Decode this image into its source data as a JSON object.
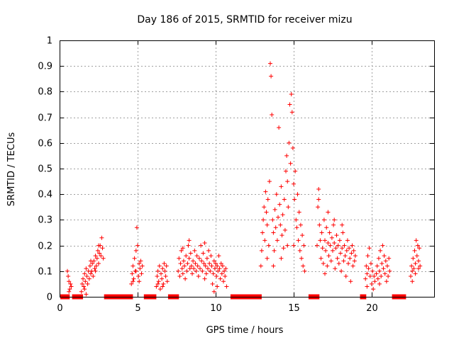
{
  "chart_data": {
    "type": "scatter",
    "title": "Day 186 of 2015, SRMTID for receiver mizu",
    "xlabel": "GPS time / hours",
    "ylabel": "SRMTID / TECUs",
    "xlim": [
      0,
      24
    ],
    "ylim": [
      0,
      1
    ],
    "x_ticks": [
      0,
      5,
      10,
      15,
      20
    ],
    "y_ticks": [
      0,
      0.1,
      0.2,
      0.3,
      0.4,
      0.5,
      0.6,
      0.7,
      0.8,
      0.9,
      1
    ],
    "x_tick_labels": [
      "0",
      "5",
      "10",
      "15",
      "20"
    ],
    "y_tick_labels": [
      "0",
      "0.1",
      "0.2",
      "0.3",
      "0.4",
      "0.5",
      "0.6",
      "0.7",
      "0.8",
      "0.9",
      "1"
    ],
    "grid": true,
    "marker": "+",
    "color": "#ff0000",
    "series": [
      {
        "name": "SRMTID",
        "points": [
          [
            0.5,
            0.1
          ],
          [
            0.55,
            0.08
          ],
          [
            0.6,
            0.06
          ],
          [
            0.65,
            0.03
          ],
          [
            0.7,
            0.05
          ],
          [
            0.75,
            0.04
          ],
          [
            0.6,
            0.02
          ],
          [
            1.4,
            0.02
          ],
          [
            1.45,
            0.05
          ],
          [
            1.5,
            0.07
          ],
          [
            1.55,
            0.04
          ],
          [
            1.6,
            0.09
          ],
          [
            1.65,
            0.06
          ],
          [
            1.7,
            0.01
          ],
          [
            1.75,
            0.08
          ],
          [
            1.8,
            0.05
          ],
          [
            1.85,
            0.1
          ],
          [
            1.9,
            0.07
          ],
          [
            1.95,
            0.12
          ],
          [
            2.0,
            0.09
          ],
          [
            2.05,
            0.1
          ],
          [
            2.1,
            0.13
          ],
          [
            2.15,
            0.08
          ],
          [
            2.2,
            0.14
          ],
          [
            2.25,
            0.11
          ],
          [
            2.3,
            0.16
          ],
          [
            2.35,
            0.12
          ],
          [
            2.4,
            0.15
          ],
          [
            2.45,
            0.18
          ],
          [
            2.5,
            0.13
          ],
          [
            2.55,
            0.17
          ],
          [
            2.6,
            0.2
          ],
          [
            2.65,
            0.16
          ],
          [
            2.7,
            0.23
          ],
          [
            2.75,
            0.19
          ],
          [
            2.8,
            0.15
          ],
          [
            1.6,
            0.03
          ],
          [
            1.7,
            0.11
          ],
          [
            2.0,
            0.14
          ],
          [
            2.3,
            0.1
          ],
          [
            2.5,
            0.2
          ],
          [
            4.6,
            0.05
          ],
          [
            4.65,
            0.09
          ],
          [
            4.7,
            0.12
          ],
          [
            4.75,
            0.07
          ],
          [
            4.8,
            0.15
          ],
          [
            4.85,
            0.1
          ],
          [
            4.9,
            0.18
          ],
          [
            4.95,
            0.27
          ],
          [
            5.0,
            0.2
          ],
          [
            5.05,
            0.08
          ],
          [
            5.1,
            0.13
          ],
          [
            5.15,
            0.11
          ],
          [
            5.2,
            0.14
          ],
          [
            5.25,
            0.09
          ],
          [
            5.3,
            0.12
          ],
          [
            4.7,
            0.06
          ],
          [
            4.9,
            0.1
          ],
          [
            5.1,
            0.06
          ],
          [
            6.2,
            0.04
          ],
          [
            6.25,
            0.08
          ],
          [
            6.3,
            0.1
          ],
          [
            6.35,
            0.06
          ],
          [
            6.4,
            0.12
          ],
          [
            6.45,
            0.03
          ],
          [
            6.5,
            0.09
          ],
          [
            6.55,
            0.07
          ],
          [
            6.6,
            0.11
          ],
          [
            6.65,
            0.05
          ],
          [
            6.7,
            0.13
          ],
          [
            6.75,
            0.1
          ],
          [
            6.8,
            0.08
          ],
          [
            6.85,
            0.12
          ],
          [
            6.9,
            0.06
          ],
          [
            6.3,
            0.05
          ],
          [
            6.6,
            0.04
          ],
          [
            7.6,
            0.1
          ],
          [
            7.65,
            0.15
          ],
          [
            7.7,
            0.08
          ],
          [
            7.75,
            0.13
          ],
          [
            7.8,
            0.18
          ],
          [
            7.85,
            0.11
          ],
          [
            7.9,
            0.09
          ],
          [
            7.95,
            0.14
          ],
          [
            8.0,
            0.12
          ],
          [
            8.05,
            0.07
          ],
          [
            8.1,
            0.16
          ],
          [
            8.15,
            0.1
          ],
          [
            8.2,
            0.13
          ],
          [
            8.25,
            0.2
          ],
          [
            8.3,
            0.15
          ],
          [
            8.35,
            0.11
          ],
          [
            8.4,
            0.17
          ],
          [
            8.45,
            0.12
          ],
          [
            8.5,
            0.09
          ],
          [
            8.55,
            0.14
          ],
          [
            8.6,
            0.11
          ],
          [
            8.65,
            0.18
          ],
          [
            8.7,
            0.13
          ],
          [
            8.75,
            0.1
          ],
          [
            8.8,
            0.16
          ],
          [
            8.85,
            0.12
          ],
          [
            8.9,
            0.08
          ],
          [
            8.95,
            0.15
          ],
          [
            9.0,
            0.11
          ],
          [
            9.05,
            0.2
          ],
          [
            9.1,
            0.14
          ],
          [
            9.15,
            0.1
          ],
          [
            9.2,
            0.17
          ],
          [
            9.25,
            0.13
          ],
          [
            9.3,
            0.07
          ],
          [
            9.35,
            0.12
          ],
          [
            9.4,
            0.09
          ],
          [
            9.45,
            0.15
          ],
          [
            9.5,
            0.11
          ],
          [
            9.55,
            0.18
          ],
          [
            9.6,
            0.13
          ],
          [
            9.65,
            0.1
          ],
          [
            9.7,
            0.16
          ],
          [
            9.75,
            0.12
          ],
          [
            9.8,
            0.05
          ],
          [
            9.85,
            0.09
          ],
          [
            9.9,
            0.14
          ],
          [
            9.95,
            0.11
          ],
          [
            10.0,
            0.13
          ],
          [
            10.05,
            0.08
          ],
          [
            10.1,
            0.12
          ],
          [
            10.15,
            0.1
          ],
          [
            10.2,
            0.16
          ],
          [
            10.25,
            0.11
          ],
          [
            10.3,
            0.07
          ],
          [
            10.35,
            0.13
          ],
          [
            10.4,
            0.09
          ],
          [
            10.45,
            0.12
          ],
          [
            10.5,
            0.06
          ],
          [
            10.55,
            0.1
          ],
          [
            10.6,
            0.08
          ],
          [
            10.65,
            0.11
          ],
          [
            10.7,
            0.04
          ],
          [
            9.9,
            0.02
          ],
          [
            10.1,
            0.04
          ],
          [
            8.3,
            0.22
          ],
          [
            9.3,
            0.21
          ],
          [
            7.9,
            0.19
          ],
          [
            12.9,
            0.12
          ],
          [
            12.95,
            0.18
          ],
          [
            13.0,
            0.25
          ],
          [
            13.05,
            0.3
          ],
          [
            13.1,
            0.35
          ],
          [
            13.15,
            0.22
          ],
          [
            13.2,
            0.41
          ],
          [
            13.25,
            0.33
          ],
          [
            13.3,
            0.28
          ],
          [
            13.35,
            0.38
          ],
          [
            13.4,
            0.2
          ],
          [
            13.45,
            0.45
          ],
          [
            13.5,
            0.91
          ],
          [
            13.55,
            0.86
          ],
          [
            13.6,
            0.71
          ],
          [
            13.65,
            0.3
          ],
          [
            13.7,
            0.25
          ],
          [
            13.75,
            0.18
          ],
          [
            13.8,
            0.34
          ],
          [
            13.85,
            0.27
          ],
          [
            13.9,
            0.4
          ],
          [
            13.95,
            0.22
          ],
          [
            14.0,
            0.31
          ],
          [
            14.05,
            0.66
          ],
          [
            14.1,
            0.36
          ],
          [
            14.15,
            0.28
          ],
          [
            14.2,
            0.43
          ],
          [
            14.25,
            0.24
          ],
          [
            14.3,
            0.32
          ],
          [
            14.35,
            0.19
          ],
          [
            14.4,
            0.38
          ],
          [
            14.45,
            0.26
          ],
          [
            14.5,
            0.49
          ],
          [
            14.55,
            0.55
          ],
          [
            14.6,
            0.45
          ],
          [
            14.65,
            0.35
          ],
          [
            14.7,
            0.6
          ],
          [
            14.75,
            0.75
          ],
          [
            14.8,
            0.52
          ],
          [
            14.85,
            0.79
          ],
          [
            14.9,
            0.72
          ],
          [
            14.95,
            0.58
          ],
          [
            15.0,
            0.44
          ],
          [
            15.05,
            0.38
          ],
          [
            15.1,
            0.49
          ],
          [
            15.15,
            0.3
          ],
          [
            15.2,
            0.27
          ],
          [
            15.25,
            0.4
          ],
          [
            15.3,
            0.22
          ],
          [
            15.35,
            0.33
          ],
          [
            15.4,
            0.18
          ],
          [
            15.45,
            0.28
          ],
          [
            15.5,
            0.15
          ],
          [
            15.55,
            0.24
          ],
          [
            15.6,
            0.12
          ],
          [
            15.65,
            0.2
          ],
          [
            15.7,
            0.1
          ],
          [
            14.2,
            0.15
          ],
          [
            14.6,
            0.2
          ],
          [
            13.3,
            0.15
          ],
          [
            13.7,
            0.12
          ],
          [
            15.0,
            0.2
          ],
          [
            16.5,
            0.2
          ],
          [
            16.55,
            0.35
          ],
          [
            16.6,
            0.42
          ],
          [
            16.65,
            0.28
          ],
          [
            16.7,
            0.22
          ],
          [
            16.75,
            0.15
          ],
          [
            16.8,
            0.25
          ],
          [
            16.85,
            0.19
          ],
          [
            16.9,
            0.13
          ],
          [
            16.95,
            0.3
          ],
          [
            17.0,
            0.22
          ],
          [
            17.05,
            0.18
          ],
          [
            17.1,
            0.27
          ],
          [
            17.15,
            0.12
          ],
          [
            17.2,
            0.21
          ],
          [
            17.25,
            0.16
          ],
          [
            17.3,
            0.25
          ],
          [
            17.35,
            0.2
          ],
          [
            17.4,
            0.14
          ],
          [
            17.45,
            0.23
          ],
          [
            17.5,
            0.18
          ],
          [
            17.55,
            0.28
          ],
          [
            17.6,
            0.21
          ],
          [
            17.65,
            0.11
          ],
          [
            17.7,
            0.19
          ],
          [
            17.75,
            0.24
          ],
          [
            17.8,
            0.15
          ],
          [
            17.85,
            0.2
          ],
          [
            17.9,
            0.13
          ],
          [
            17.95,
            0.22
          ],
          [
            18.0,
            0.17
          ],
          [
            18.05,
            0.1
          ],
          [
            18.1,
            0.19
          ],
          [
            18.15,
            0.25
          ],
          [
            18.2,
            0.14
          ],
          [
            18.25,
            0.2
          ],
          [
            18.3,
            0.16
          ],
          [
            18.35,
            0.08
          ],
          [
            18.4,
            0.18
          ],
          [
            18.45,
            0.22
          ],
          [
            18.5,
            0.13
          ],
          [
            18.55,
            0.19
          ],
          [
            18.6,
            0.15
          ],
          [
            18.65,
            0.06
          ],
          [
            18.7,
            0.17
          ],
          [
            18.75,
            0.2
          ],
          [
            18.8,
            0.12
          ],
          [
            18.85,
            0.18
          ],
          [
            18.9,
            0.14
          ],
          [
            18.95,
            0.16
          ],
          [
            16.6,
            0.38
          ],
          [
            17.2,
            0.33
          ],
          [
            17.6,
            0.3
          ],
          [
            18.1,
            0.28
          ],
          [
            17.0,
            0.09
          ],
          [
            19.6,
            0.07
          ],
          [
            19.65,
            0.12
          ],
          [
            19.7,
            0.09
          ],
          [
            19.75,
            0.16
          ],
          [
            19.8,
            0.11
          ],
          [
            19.85,
            0.19
          ],
          [
            19.9,
            0.08
          ],
          [
            19.95,
            0.13
          ],
          [
            20.0,
            0.05
          ],
          [
            20.05,
            0.1
          ],
          [
            20.1,
            0.03
          ],
          [
            20.15,
            0.08
          ],
          [
            20.2,
            0.06
          ],
          [
            20.3,
            0.09
          ],
          [
            20.35,
            0.12
          ],
          [
            20.4,
            0.07
          ],
          [
            20.45,
            0.15
          ],
          [
            20.5,
            0.1
          ],
          [
            20.55,
            0.18
          ],
          [
            20.6,
            0.08
          ],
          [
            20.65,
            0.13
          ],
          [
            20.7,
            0.2
          ],
          [
            20.75,
            0.11
          ],
          [
            20.8,
            0.16
          ],
          [
            20.85,
            0.09
          ],
          [
            20.9,
            0.14
          ],
          [
            20.95,
            0.06
          ],
          [
            21.0,
            0.12
          ],
          [
            21.05,
            0.08
          ],
          [
            21.1,
            0.15
          ],
          [
            21.15,
            0.1
          ],
          [
            19.7,
            0.04
          ],
          [
            20.5,
            0.05
          ],
          [
            22.5,
            0.08
          ],
          [
            22.55,
            0.12
          ],
          [
            22.6,
            0.1
          ],
          [
            22.65,
            0.15
          ],
          [
            22.7,
            0.11
          ],
          [
            22.75,
            0.18
          ],
          [
            22.8,
            0.13
          ],
          [
            22.85,
            0.22
          ],
          [
            22.9,
            0.16
          ],
          [
            22.95,
            0.2
          ],
          [
            23.0,
            0.14
          ],
          [
            23.05,
            0.19
          ],
          [
            23.1,
            0.12
          ],
          [
            22.6,
            0.06
          ],
          [
            22.8,
            0.09
          ],
          [
            23.0,
            0.11
          ]
        ]
      }
    ],
    "zero_bars": [
      [
        0.05,
        0.65
      ],
      [
        0.8,
        1.5
      ],
      [
        2.85,
        4.7
      ],
      [
        5.4,
        6.2
      ],
      [
        6.95,
        7.65
      ],
      [
        10.95,
        12.95
      ],
      [
        15.95,
        16.65
      ],
      [
        19.25,
        19.65
      ],
      [
        21.3,
        22.2
      ]
    ]
  }
}
